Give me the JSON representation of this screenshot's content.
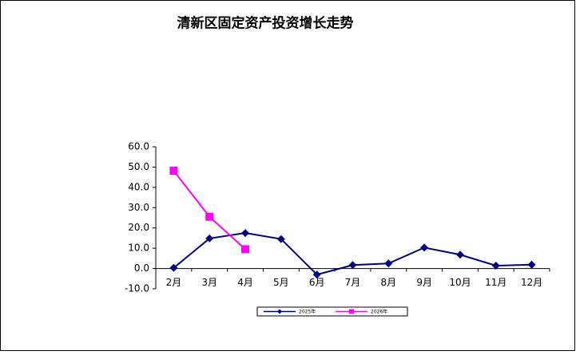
{
  "chart_data": {
    "type": "line",
    "title": "清新区固定资产投资增长走势",
    "categories": [
      "2月",
      "3月",
      "4月",
      "5月",
      "6月",
      "7月",
      "8月",
      "9月",
      "10月",
      "11月",
      "12月"
    ],
    "series": [
      {
        "name": "2025年",
        "color": "#000080",
        "marker": "diamond",
        "values": [
          0.3,
          14.8,
          17.5,
          14.5,
          -3.0,
          1.7,
          2.5,
          10.3,
          6.8,
          1.4,
          1.9
        ]
      },
      {
        "name": "2026年",
        "color": "#ff00ff",
        "marker": "square",
        "values": [
          48.2,
          25.5,
          9.5,
          null,
          null,
          null,
          null,
          null,
          null,
          null,
          null
        ]
      }
    ],
    "ylim": [
      -10,
      60
    ],
    "yticks": [
      {
        "value": -10,
        "label": "-10.0"
      },
      {
        "value": 0,
        "label": "0.0"
      },
      {
        "value": 10,
        "label": "10.0"
      },
      {
        "value": 20,
        "label": "20.0"
      },
      {
        "value": 30,
        "label": "30.0"
      },
      {
        "value": 40,
        "label": "40.0"
      },
      {
        "value": 50,
        "label": "50.0"
      },
      {
        "value": 60,
        "label": "60.0"
      }
    ],
    "grid": false,
    "legend": "bottom"
  }
}
